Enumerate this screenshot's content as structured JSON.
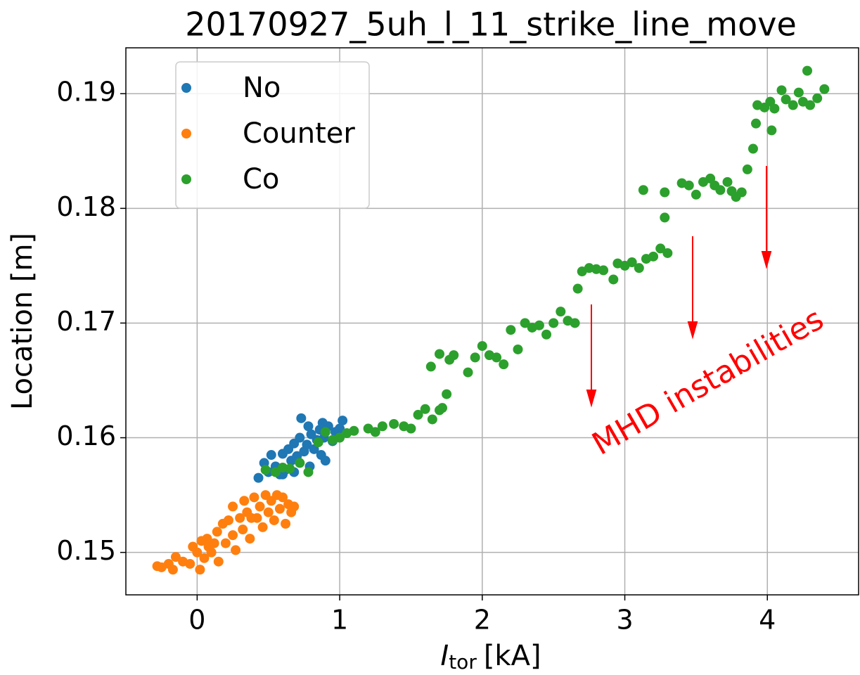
{
  "chart_data": {
    "type": "scatter",
    "title": "20170927_5uh_l_11_strike_line_move",
    "xlabel": {
      "symbol": "I",
      "subscript": "tor",
      "unit": "[kA]"
    },
    "ylabel": "Location [m]",
    "annotation": "MHD instabilities",
    "xlim": [
      -0.5,
      4.64
    ],
    "ylim": [
      0.1463,
      0.194
    ],
    "xticks": [
      0,
      1,
      2,
      3,
      4
    ],
    "yticks": [
      0.15,
      0.16,
      0.17,
      0.18,
      0.19
    ],
    "grid": true,
    "legend": "upper left",
    "series": [
      {
        "name": "No",
        "color": "#1f77b4",
        "x": [
          0.43,
          0.47,
          0.5,
          0.52,
          0.55,
          0.58,
          0.6,
          0.62,
          0.64,
          0.66,
          0.68,
          0.7,
          0.72,
          0.73,
          0.75,
          0.77,
          0.79,
          0.8,
          0.82,
          0.84,
          0.86,
          0.87,
          0.89,
          0.9,
          0.92,
          0.95,
          0.97,
          1.0,
          1.02,
          0.6,
          0.68,
          0.78,
          0.88
        ],
        "values": [
          0.1565,
          0.1578,
          0.157,
          0.1585,
          0.1575,
          0.1568,
          0.1586,
          0.1572,
          0.159,
          0.158,
          0.1595,
          0.1584,
          0.16,
          0.1617,
          0.1588,
          0.1594,
          0.1575,
          0.1603,
          0.159,
          0.1598,
          0.1607,
          0.1585,
          0.16,
          0.158,
          0.161,
          0.1597,
          0.1605,
          0.1608,
          0.1615,
          0.1568,
          0.157,
          0.161,
          0.1613
        ]
      },
      {
        "name": "Counter",
        "color": "#ff7f0e",
        "x": [
          -0.28,
          -0.25,
          -0.2,
          -0.17,
          -0.15,
          -0.1,
          -0.05,
          -0.03,
          0.0,
          0.02,
          0.03,
          0.05,
          0.07,
          0.1,
          0.12,
          0.14,
          0.15,
          0.18,
          0.2,
          0.22,
          0.25,
          0.27,
          0.3,
          0.32,
          0.33,
          0.35,
          0.37,
          0.4,
          0.42,
          0.44,
          0.46,
          0.48,
          0.5,
          0.52,
          0.54,
          0.56,
          0.58,
          0.6,
          0.62,
          0.64,
          0.66,
          0.68,
          0.38,
          0.25,
          0.08
        ],
        "values": [
          0.1488,
          0.1487,
          0.149,
          0.1485,
          0.1496,
          0.1492,
          0.149,
          0.1505,
          0.15,
          0.1485,
          0.151,
          0.1495,
          0.1512,
          0.15,
          0.1508,
          0.1518,
          0.1492,
          0.1525,
          0.1508,
          0.1528,
          0.1515,
          0.1502,
          0.153,
          0.152,
          0.1545,
          0.1535,
          0.1512,
          0.1548,
          0.153,
          0.154,
          0.1522,
          0.155,
          0.1535,
          0.1545,
          0.1528,
          0.155,
          0.1538,
          0.1548,
          0.1525,
          0.1542,
          0.1535,
          0.154,
          0.153,
          0.154,
          0.1505
        ]
      },
      {
        "name": "Co",
        "color": "#2ca02c",
        "x": [
          0.48,
          0.55,
          0.6,
          0.65,
          0.72,
          0.78,
          0.85,
          0.9,
          0.95,
          1.0,
          1.05,
          1.1,
          1.2,
          1.25,
          1.3,
          1.38,
          1.45,
          1.5,
          1.55,
          1.6,
          1.65,
          1.7,
          1.72,
          1.64,
          1.7,
          1.77,
          1.8,
          1.75,
          1.9,
          1.95,
          2.0,
          2.05,
          2.1,
          2.15,
          2.2,
          2.25,
          2.3,
          2.35,
          2.4,
          2.45,
          2.5,
          2.55,
          2.6,
          2.65,
          2.67,
          2.7,
          2.75,
          2.8,
          2.85,
          2.92,
          2.95,
          3.0,
          3.05,
          3.1,
          3.15,
          3.2,
          3.25,
          3.3,
          3.28,
          3.13,
          3.28,
          3.4,
          3.45,
          3.5,
          3.55,
          3.6,
          3.63,
          3.67,
          3.72,
          3.75,
          3.78,
          3.82,
          3.86,
          3.9,
          3.92,
          3.93,
          3.98,
          4.02,
          4.03,
          4.05,
          4.1,
          4.13,
          4.18,
          4.22,
          4.25,
          4.28,
          4.3,
          4.35,
          4.4
        ],
        "values": [
          0.1572,
          0.157,
          0.1574,
          0.1573,
          0.1578,
          0.157,
          0.1596,
          0.1605,
          0.1598,
          0.16,
          0.1604,
          0.1606,
          0.1608,
          0.1605,
          0.161,
          0.1612,
          0.161,
          0.1608,
          0.162,
          0.1625,
          0.1616,
          0.1624,
          0.1626,
          0.1662,
          0.1673,
          0.1668,
          0.1672,
          0.1638,
          0.1657,
          0.167,
          0.168,
          0.1672,
          0.167,
          0.1664,
          0.1694,
          0.1677,
          0.17,
          0.1696,
          0.1698,
          0.169,
          0.17,
          0.171,
          0.1702,
          0.17,
          0.173,
          0.1745,
          0.1748,
          0.1747,
          0.1746,
          0.1738,
          0.1752,
          0.175,
          0.1753,
          0.1748,
          0.1756,
          0.1758,
          0.1765,
          0.1761,
          0.1792,
          0.1816,
          0.1814,
          0.1822,
          0.182,
          0.1812,
          0.1823,
          0.1826,
          0.182,
          0.1816,
          0.1823,
          0.1815,
          0.181,
          0.1814,
          0.1834,
          0.1852,
          0.1874,
          0.189,
          0.1888,
          0.1893,
          0.1868,
          0.1887,
          0.1903,
          0.1895,
          0.189,
          0.1901,
          0.1893,
          0.192,
          0.189,
          0.1896,
          0.1904
        ]
      }
    ]
  }
}
